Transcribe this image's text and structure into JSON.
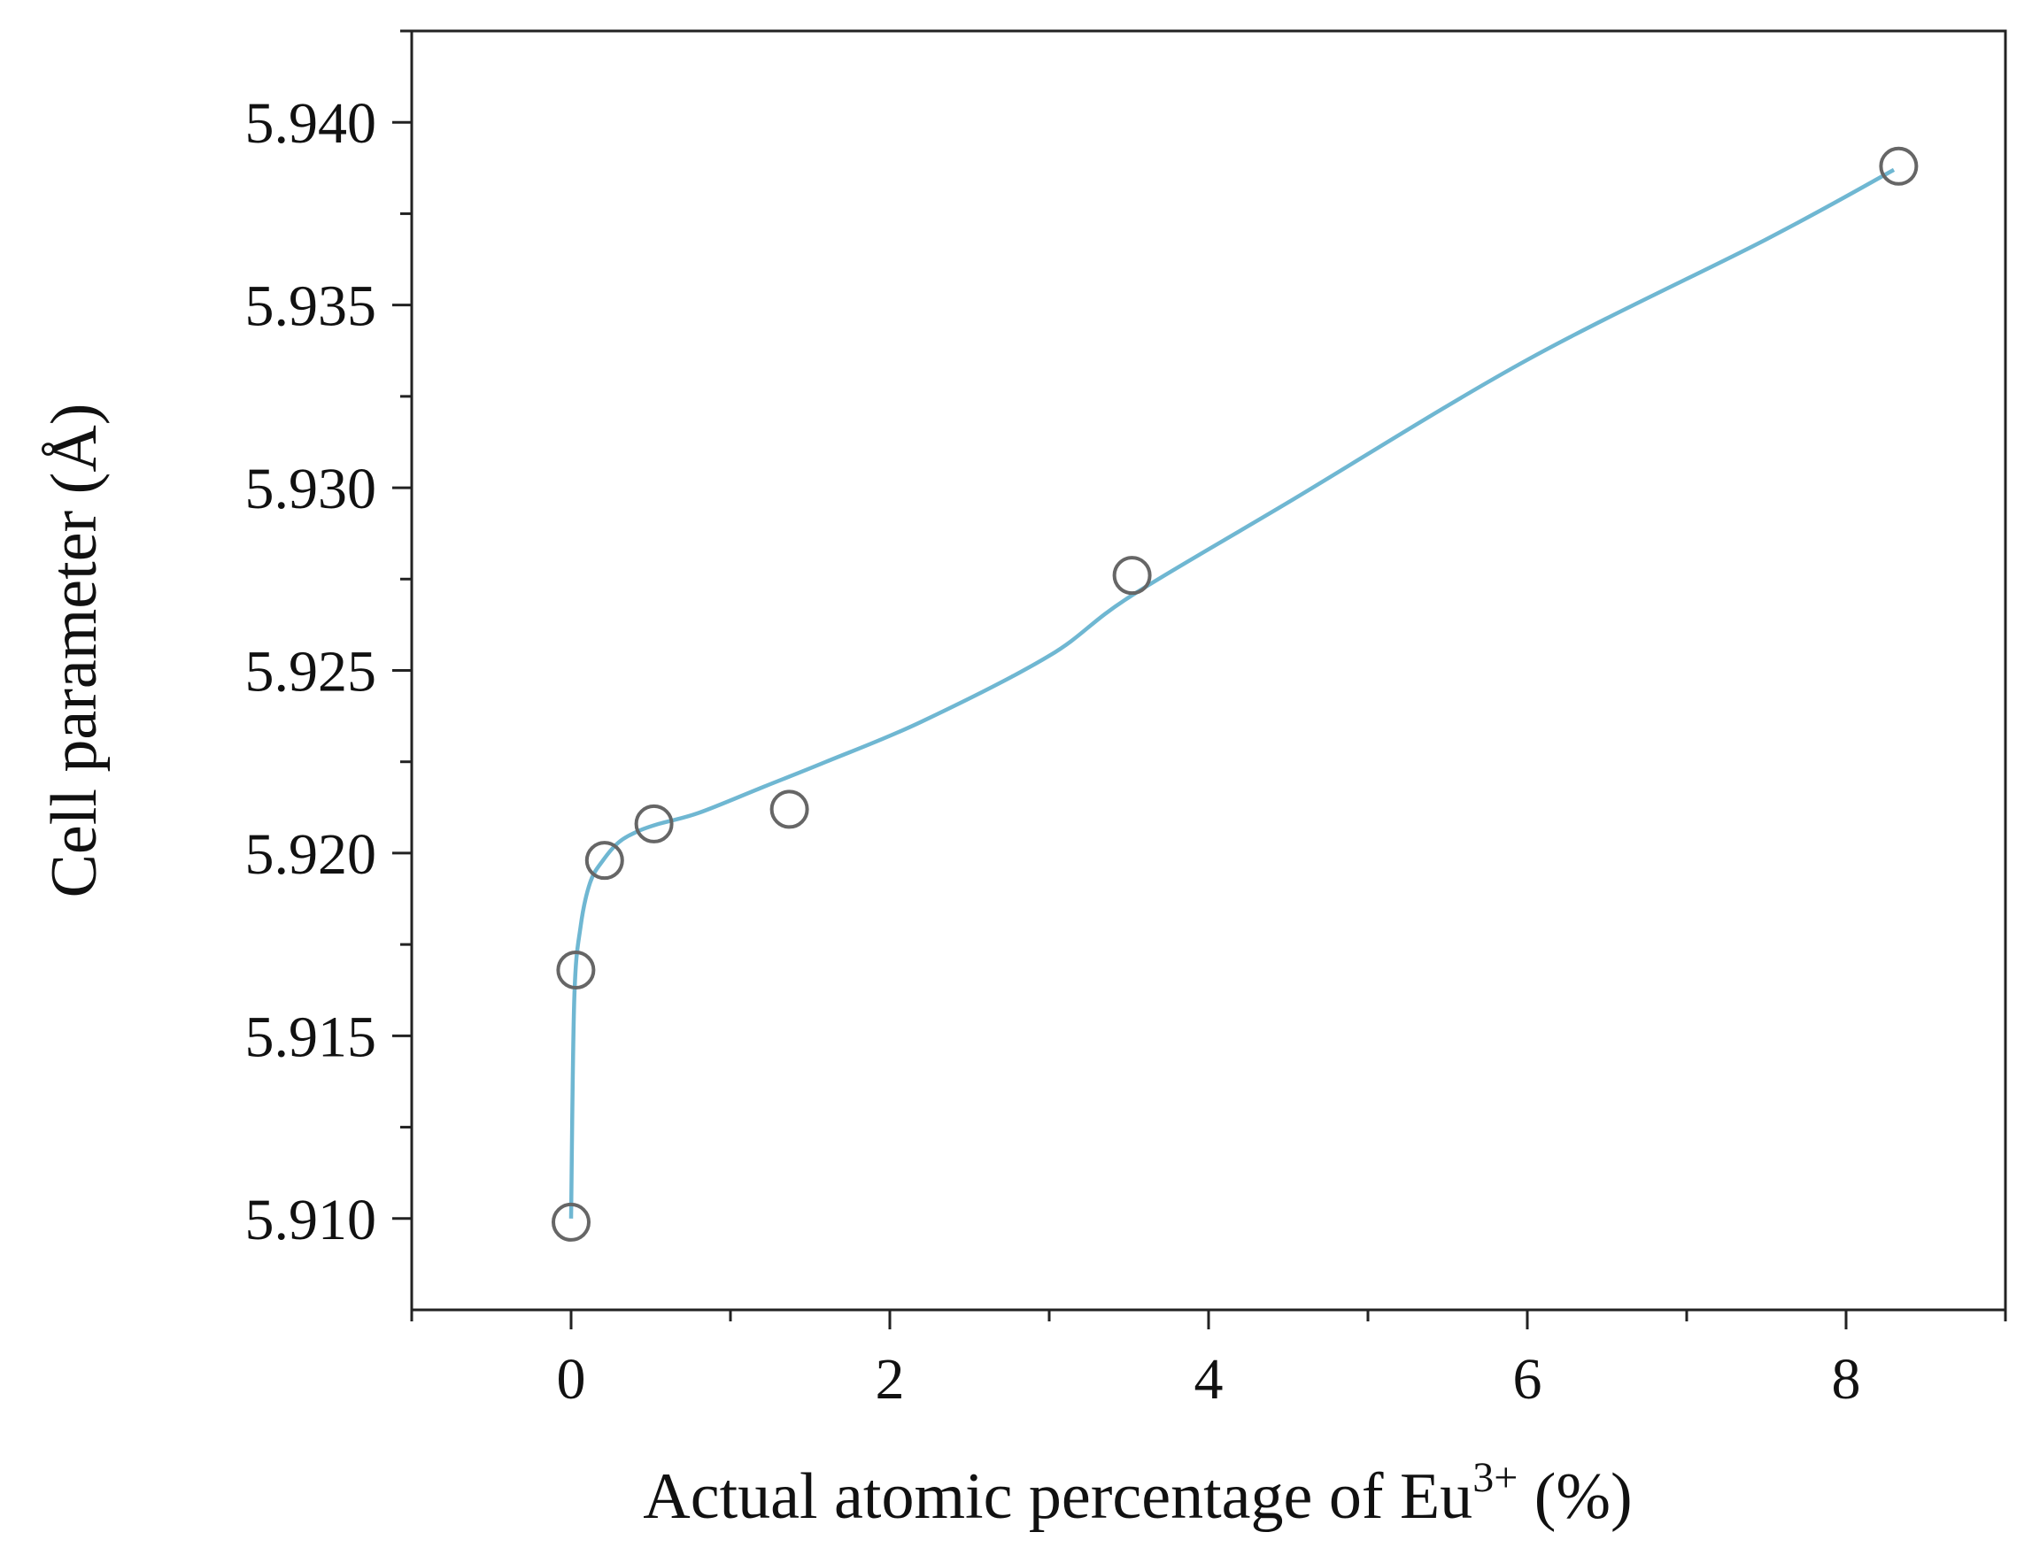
{
  "chart_data": {
    "type": "scatter",
    "xlabel": "Actual atomic percentage of Eu",
    "xlabel_superscript": "3+",
    "xlabel_suffix": " (%)",
    "ylabel": "Cell parameter (Å)",
    "xlim": [
      -1,
      9
    ],
    "ylim": [
      5.9075,
      5.9425
    ],
    "x_ticks": [
      0,
      2,
      4,
      6,
      8
    ],
    "x_minor_ticks": [
      -1,
      1,
      3,
      5,
      7,
      9
    ],
    "y_ticks": [
      5.91,
      5.915,
      5.92,
      5.925,
      5.93,
      5.935,
      5.94
    ],
    "y_tick_labels": [
      "5.910",
      "5.915",
      "5.920",
      "5.925",
      "5.930",
      "5.935",
      "5.940"
    ],
    "y_minor_ticks": [
      5.9125,
      5.9175,
      5.9225,
      5.9275,
      5.9325,
      5.9375,
      5.9425
    ],
    "grid": false,
    "series": [
      {
        "kind": "points",
        "x": [
          0,
          0.03,
          0.21,
          0.52,
          1.37,
          3.52,
          8.33
        ],
        "y": [
          5.9099,
          5.9168,
          5.9198,
          5.9208,
          5.9212,
          5.9276,
          5.9388
        ],
        "color": "#666666",
        "marker": "open-circle"
      },
      {
        "kind": "fit-curve",
        "x": [
          0,
          0.02,
          0.06,
          0.12,
          0.2,
          0.3,
          0.42,
          0.55,
          0.8,
          1.2,
          1.6,
          2.2,
          3.0,
          3.5,
          4.5,
          6.0,
          7.5,
          8.3
        ],
        "y": [
          5.91,
          5.916,
          5.918,
          5.9192,
          5.9198,
          5.9203,
          5.9206,
          5.9208,
          5.9211,
          5.9218,
          5.9225,
          5.9236,
          5.9254,
          5.927,
          5.9296,
          5.9335,
          5.9368,
          5.9387
        ],
        "color": "#6fb7d2"
      }
    ]
  }
}
